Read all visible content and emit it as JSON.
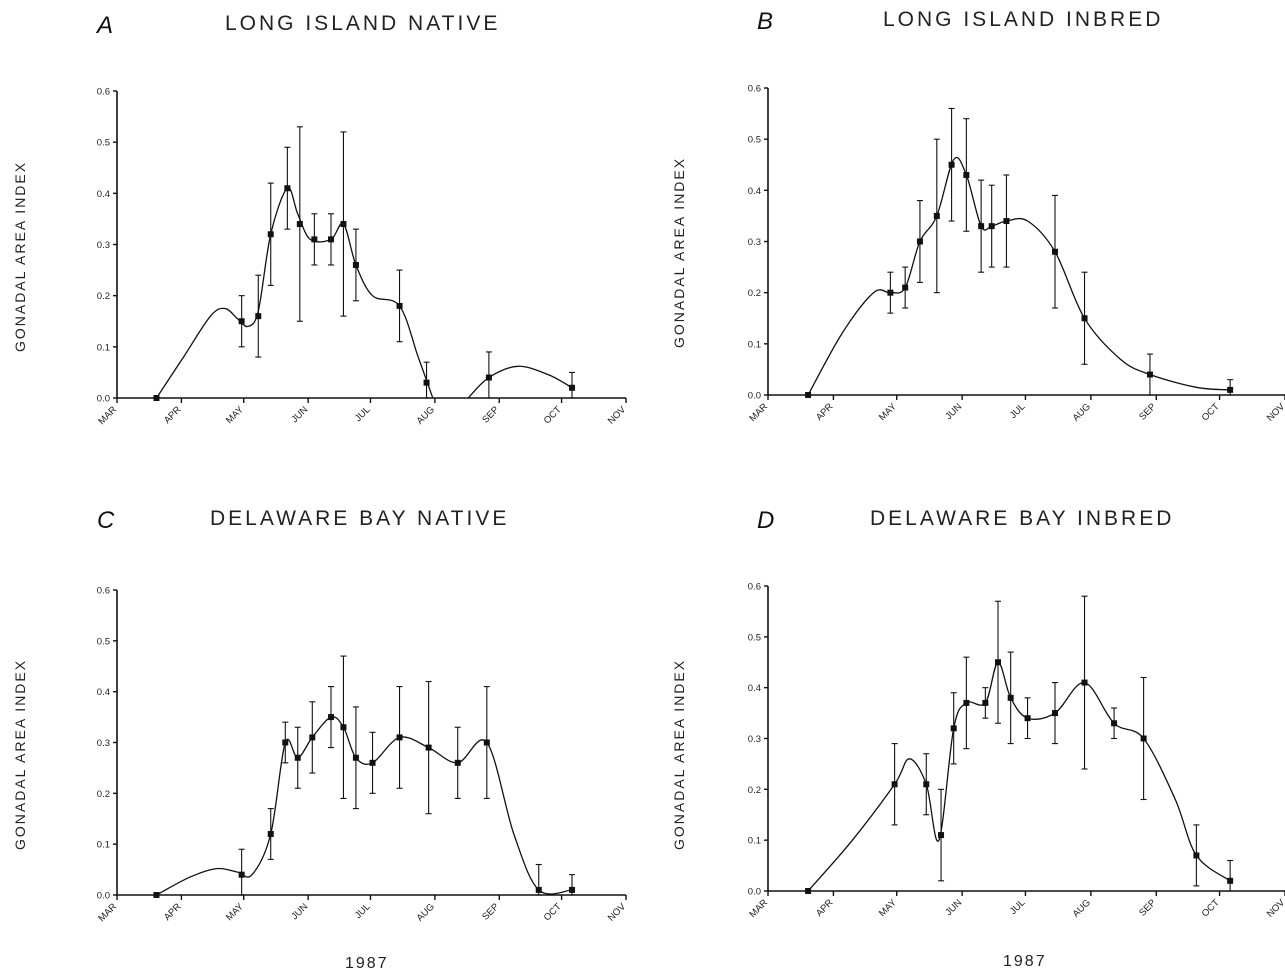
{
  "figure": {
    "xlabel": "1987"
  },
  "chart_data": [
    {
      "panel": "A",
      "title": "LONG ISLAND NATIVE",
      "type": "line",
      "ylabel": "GONADAL AREA INDEX",
      "xlabel": "",
      "x_ticks": [
        "MAR",
        "APR",
        "MAY",
        "JUN",
        "JUL",
        "AUG",
        "SEP",
        "OCT",
        "NOV"
      ],
      "y_ticks": [
        "0.0",
        "0.1",
        "0.2",
        "0.3",
        "0.4",
        "0.5",
        "0.6"
      ],
      "ylim": [
        0,
        0.6
      ],
      "points": [
        {
          "date": "1987-03-20",
          "y": 0.0,
          "err": 0.0
        },
        {
          "date": "1987-04-30",
          "y": 0.15,
          "err": 0.05
        },
        {
          "date": "1987-05-08",
          "y": 0.16,
          "err": 0.08
        },
        {
          "date": "1987-05-14",
          "y": 0.32,
          "err": 0.1
        },
        {
          "date": "1987-05-22",
          "y": 0.41,
          "err": 0.08
        },
        {
          "date": "1987-05-28",
          "y": 0.34,
          "err": 0.19
        },
        {
          "date": "1987-06-04",
          "y": 0.31,
          "err": 0.05
        },
        {
          "date": "1987-06-12",
          "y": 0.31,
          "err": 0.05
        },
        {
          "date": "1987-06-18",
          "y": 0.34,
          "err": 0.18
        },
        {
          "date": "1987-06-24",
          "y": 0.26,
          "err": 0.07
        },
        {
          "date": "1987-07-15",
          "y": 0.18,
          "err": 0.07
        },
        {
          "date": "1987-07-28",
          "y": 0.03,
          "err": 0.04
        },
        {
          "date": "1987-08-27",
          "y": 0.04,
          "err": 0.05
        },
        {
          "date": "1987-10-06",
          "y": 0.02,
          "err": 0.03
        }
      ],
      "curve": [
        [
          "1987-03-20",
          0.0
        ],
        [
          "1987-04-02",
          0.08
        ],
        [
          "1987-04-15",
          0.16
        ],
        [
          "1987-04-22",
          0.175
        ],
        [
          "1987-04-28",
          0.155
        ],
        [
          "1987-05-03",
          0.14
        ],
        [
          "1987-05-08",
          0.17
        ],
        [
          "1987-05-14",
          0.32
        ],
        [
          "1987-05-22",
          0.41
        ],
        [
          "1987-05-27",
          0.36
        ],
        [
          "1987-06-02",
          0.31
        ],
        [
          "1987-06-12",
          0.31
        ],
        [
          "1987-06-18",
          0.34
        ],
        [
          "1987-06-24",
          0.26
        ],
        [
          "1987-07-02",
          0.2
        ],
        [
          "1987-07-15",
          0.18
        ],
        [
          "1987-07-24",
          0.08
        ],
        [
          "1987-07-31",
          0.0
        ],
        null,
        [
          "1987-08-17",
          0.0
        ],
        [
          "1987-08-27",
          0.04
        ],
        [
          "1987-09-10",
          0.062
        ],
        [
          "1987-09-25",
          0.045
        ],
        [
          "1987-10-06",
          0.02
        ]
      ]
    },
    {
      "panel": "B",
      "title": "LONG ISLAND INBRED",
      "type": "line",
      "ylabel": "GONADAL AREA INDEX",
      "xlabel": "",
      "x_ticks": [
        "MAR",
        "APR",
        "MAY",
        "JUN",
        "JUL",
        "AUG",
        "SEP",
        "OCT",
        "NOV"
      ],
      "y_ticks": [
        "0.0",
        "0.1",
        "0.2",
        "0.3",
        "0.4",
        "0.5",
        "0.6"
      ],
      "ylim": [
        0,
        0.6
      ],
      "points": [
        {
          "date": "1987-03-20",
          "y": 0.0,
          "err": 0.0
        },
        {
          "date": "1987-04-28",
          "y": 0.2,
          "err": 0.04
        },
        {
          "date": "1987-05-05",
          "y": 0.21,
          "err": 0.04
        },
        {
          "date": "1987-05-12",
          "y": 0.3,
          "err": 0.08
        },
        {
          "date": "1987-05-20",
          "y": 0.35,
          "err": 0.15
        },
        {
          "date": "1987-05-27",
          "y": 0.45,
          "err": 0.11
        },
        {
          "date": "1987-06-03",
          "y": 0.43,
          "err": 0.11
        },
        {
          "date": "1987-06-10",
          "y": 0.33,
          "err": 0.09
        },
        {
          "date": "1987-06-15",
          "y": 0.33,
          "err": 0.08
        },
        {
          "date": "1987-06-22",
          "y": 0.34,
          "err": 0.09
        },
        {
          "date": "1987-07-15",
          "y": 0.28,
          "err": 0.11
        },
        {
          "date": "1987-07-29",
          "y": 0.15,
          "err": 0.09
        },
        {
          "date": "1987-08-29",
          "y": 0.04,
          "err": 0.04
        },
        {
          "date": "1987-10-06",
          "y": 0.01,
          "err": 0.02
        }
      ],
      "curve": [
        [
          "1987-03-20",
          0.0
        ],
        [
          "1987-04-05",
          0.12
        ],
        [
          "1987-04-20",
          0.2
        ],
        [
          "1987-04-28",
          0.2
        ],
        [
          "1987-05-05",
          0.21
        ],
        [
          "1987-05-12",
          0.3
        ],
        [
          "1987-05-20",
          0.35
        ],
        [
          "1987-05-28",
          0.46
        ],
        [
          "1987-06-03",
          0.43
        ],
        [
          "1987-06-10",
          0.33
        ],
        [
          "1987-06-15",
          0.33
        ],
        [
          "1987-06-22",
          0.34
        ],
        [
          "1987-07-02",
          0.34
        ],
        [
          "1987-07-15",
          0.28
        ],
        [
          "1987-07-29",
          0.15
        ],
        [
          "1987-08-15",
          0.07
        ],
        [
          "1987-08-29",
          0.04
        ],
        [
          "1987-09-20",
          0.015
        ],
        [
          "1987-10-06",
          0.01
        ]
      ]
    },
    {
      "panel": "C",
      "title": "DELAWARE BAY NATIVE",
      "type": "line",
      "ylabel": "GONADAL AREA INDEX",
      "xlabel": "1987",
      "x_ticks": [
        "MAR",
        "APR",
        "MAY",
        "JUN",
        "JUL",
        "AUG",
        "SEP",
        "OCT",
        "NOV"
      ],
      "y_ticks": [
        "0.0",
        "0.1",
        "0.2",
        "0.3",
        "0.4",
        "0.5",
        "0.6"
      ],
      "ylim": [
        0,
        0.6
      ],
      "points": [
        {
          "date": "1987-03-20",
          "y": 0.0,
          "err": 0.0
        },
        {
          "date": "1987-04-30",
          "y": 0.04,
          "err": 0.05
        },
        {
          "date": "1987-05-14",
          "y": 0.12,
          "err": 0.05
        },
        {
          "date": "1987-05-21",
          "y": 0.3,
          "err": 0.04
        },
        {
          "date": "1987-05-27",
          "y": 0.27,
          "err": 0.06
        },
        {
          "date": "1987-06-03",
          "y": 0.31,
          "err": 0.07
        },
        {
          "date": "1987-06-12",
          "y": 0.35,
          "err": 0.06
        },
        {
          "date": "1987-06-18",
          "y": 0.33,
          "err": 0.14
        },
        {
          "date": "1987-06-24",
          "y": 0.27,
          "err": 0.1
        },
        {
          "date": "1987-07-02",
          "y": 0.26,
          "err": 0.06
        },
        {
          "date": "1987-07-15",
          "y": 0.31,
          "err": 0.1
        },
        {
          "date": "1987-07-29",
          "y": 0.29,
          "err": 0.13
        },
        {
          "date": "1987-08-12",
          "y": 0.26,
          "err": 0.07
        },
        {
          "date": "1987-08-26",
          "y": 0.3,
          "err": 0.11
        },
        {
          "date": "1987-09-20",
          "y": 0.01,
          "err": 0.05
        },
        {
          "date": "1987-10-06",
          "y": 0.01,
          "err": 0.03
        }
      ],
      "curve": [
        [
          "1987-03-20",
          0.0
        ],
        [
          "1987-04-05",
          0.035
        ],
        [
          "1987-04-18",
          0.052
        ],
        [
          "1987-04-28",
          0.045
        ],
        [
          "1987-05-05",
          0.04
        ],
        [
          "1987-05-14",
          0.12
        ],
        [
          "1987-05-21",
          0.3
        ],
        [
          "1987-05-27",
          0.27
        ],
        [
          "1987-06-03",
          0.31
        ],
        [
          "1987-06-12",
          0.35
        ],
        [
          "1987-06-18",
          0.33
        ],
        [
          "1987-06-24",
          0.27
        ],
        [
          "1987-07-02",
          0.26
        ],
        [
          "1987-07-15",
          0.31
        ],
        [
          "1987-07-29",
          0.29
        ],
        [
          "1987-08-12",
          0.26
        ],
        [
          "1987-08-26",
          0.3
        ],
        [
          "1987-09-08",
          0.12
        ],
        [
          "1987-09-20",
          0.01
        ],
        [
          "1987-10-06",
          0.01
        ]
      ]
    },
    {
      "panel": "D",
      "title": "DELAWARE BAY INBRED",
      "type": "line",
      "ylabel": "GONADAL AREA INDEX",
      "xlabel": "1987",
      "x_ticks": [
        "MAR",
        "APR",
        "MAY",
        "JUN",
        "JUL",
        "AUG",
        "SEP",
        "OCT",
        "NOV"
      ],
      "y_ticks": [
        "0.0",
        "0.1",
        "0.2",
        "0.3",
        "0.4",
        "0.5",
        "0.6"
      ],
      "ylim": [
        0,
        0.6
      ],
      "points": [
        {
          "date": "1987-03-20",
          "y": 0.0,
          "err": 0.0
        },
        {
          "date": "1987-04-30",
          "y": 0.21,
          "err": 0.08
        },
        {
          "date": "1987-05-15",
          "y": 0.21,
          "err": 0.06
        },
        {
          "date": "1987-05-22",
          "y": 0.11,
          "err": 0.09
        },
        {
          "date": "1987-05-28",
          "y": 0.32,
          "err": 0.07
        },
        {
          "date": "1987-06-03",
          "y": 0.37,
          "err": 0.09
        },
        {
          "date": "1987-06-12",
          "y": 0.37,
          "err": 0.03
        },
        {
          "date": "1987-06-18",
          "y": 0.45,
          "err": 0.12
        },
        {
          "date": "1987-06-24",
          "y": 0.38,
          "err": 0.09
        },
        {
          "date": "1987-07-02",
          "y": 0.34,
          "err": 0.04
        },
        {
          "date": "1987-07-15",
          "y": 0.35,
          "err": 0.06
        },
        {
          "date": "1987-07-29",
          "y": 0.41,
          "err": 0.17
        },
        {
          "date": "1987-08-12",
          "y": 0.33,
          "err": 0.03
        },
        {
          "date": "1987-08-26",
          "y": 0.3,
          "err": 0.12
        },
        {
          "date": "1987-09-20",
          "y": 0.07,
          "err": 0.06
        },
        {
          "date": "1987-10-06",
          "y": 0.02,
          "err": 0.04
        }
      ],
      "curve": [
        [
          "1987-03-20",
          0.0
        ],
        [
          "1987-04-10",
          0.1
        ],
        [
          "1987-04-30",
          0.21
        ],
        [
          "1987-05-07",
          0.26
        ],
        [
          "1987-05-15",
          0.21
        ],
        [
          "1987-05-21",
          0.1
        ],
        [
          "1987-05-28",
          0.32
        ],
        [
          "1987-06-03",
          0.37
        ],
        [
          "1987-06-12",
          0.37
        ],
        [
          "1987-06-18",
          0.45
        ],
        [
          "1987-06-24",
          0.38
        ],
        [
          "1987-07-02",
          0.34
        ],
        [
          "1987-07-15",
          0.35
        ],
        [
          "1987-07-29",
          0.41
        ],
        [
          "1987-08-12",
          0.33
        ],
        [
          "1987-08-26",
          0.3
        ],
        [
          "1987-09-10",
          0.18
        ],
        [
          "1987-09-20",
          0.07
        ],
        [
          "1987-10-06",
          0.02
        ]
      ]
    }
  ]
}
